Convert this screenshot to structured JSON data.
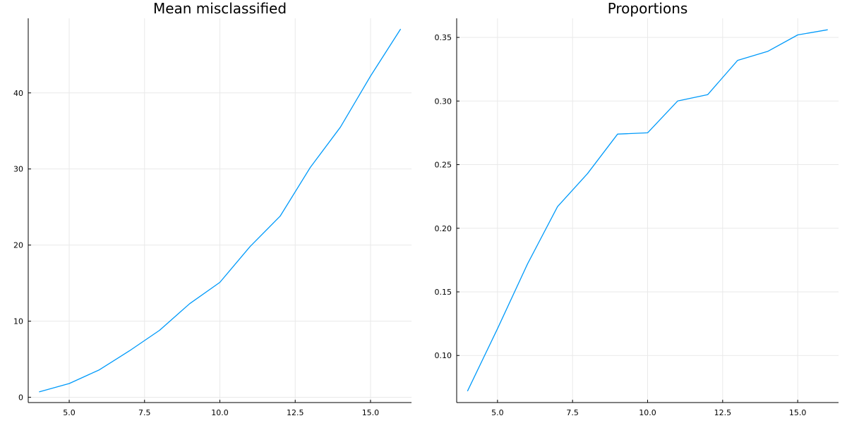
{
  "chart_data": [
    {
      "type": "line",
      "title": "Mean misclassified",
      "xlabel": "",
      "ylabel": "",
      "xlim": [
        3.64,
        16.36
      ],
      "ylim": [
        -0.7,
        49.8
      ],
      "xticks": [
        5,
        7.5,
        10,
        12.5,
        15
      ],
      "xtick_labels": [
        "5.0",
        "7.5",
        "10.0",
        "12.5",
        "15.0"
      ],
      "yticks": [
        0,
        10,
        20,
        30,
        40
      ],
      "ytick_labels": [
        "0",
        "10",
        "20",
        "30",
        "40"
      ],
      "grid": true,
      "series": [
        {
          "color": "#009AFA",
          "x": [
            4,
            5,
            6,
            7,
            8,
            9,
            10,
            11,
            12,
            13,
            14,
            15,
            16
          ],
          "y": [
            0.7,
            1.8,
            3.6,
            6.1,
            8.8,
            12.3,
            15.1,
            19.8,
            23.8,
            30.2,
            35.5,
            42.2,
            48.4
          ]
        }
      ]
    },
    {
      "type": "line",
      "title": "Proportions",
      "xlabel": "",
      "ylabel": "",
      "xlim": [
        3.64,
        16.36
      ],
      "ylim": [
        0.063,
        0.365
      ],
      "xticks": [
        5,
        7.5,
        10,
        12.5,
        15
      ],
      "xtick_labels": [
        "5.0",
        "7.5",
        "10.0",
        "12.5",
        "15.0"
      ],
      "yticks": [
        0.1,
        0.15,
        0.2,
        0.25,
        0.3,
        0.35
      ],
      "ytick_labels": [
        "0.10",
        "0.15",
        "0.20",
        "0.25",
        "0.30",
        "0.35"
      ],
      "grid": true,
      "series": [
        {
          "color": "#009AFA",
          "x": [
            4,
            5,
            6,
            7,
            8,
            9,
            10,
            11,
            12,
            13,
            14,
            15,
            16
          ],
          "y": [
            0.072,
            0.121,
            0.172,
            0.217,
            0.243,
            0.274,
            0.275,
            0.3,
            0.305,
            0.332,
            0.339,
            0.352,
            0.356
          ]
        }
      ]
    }
  ]
}
